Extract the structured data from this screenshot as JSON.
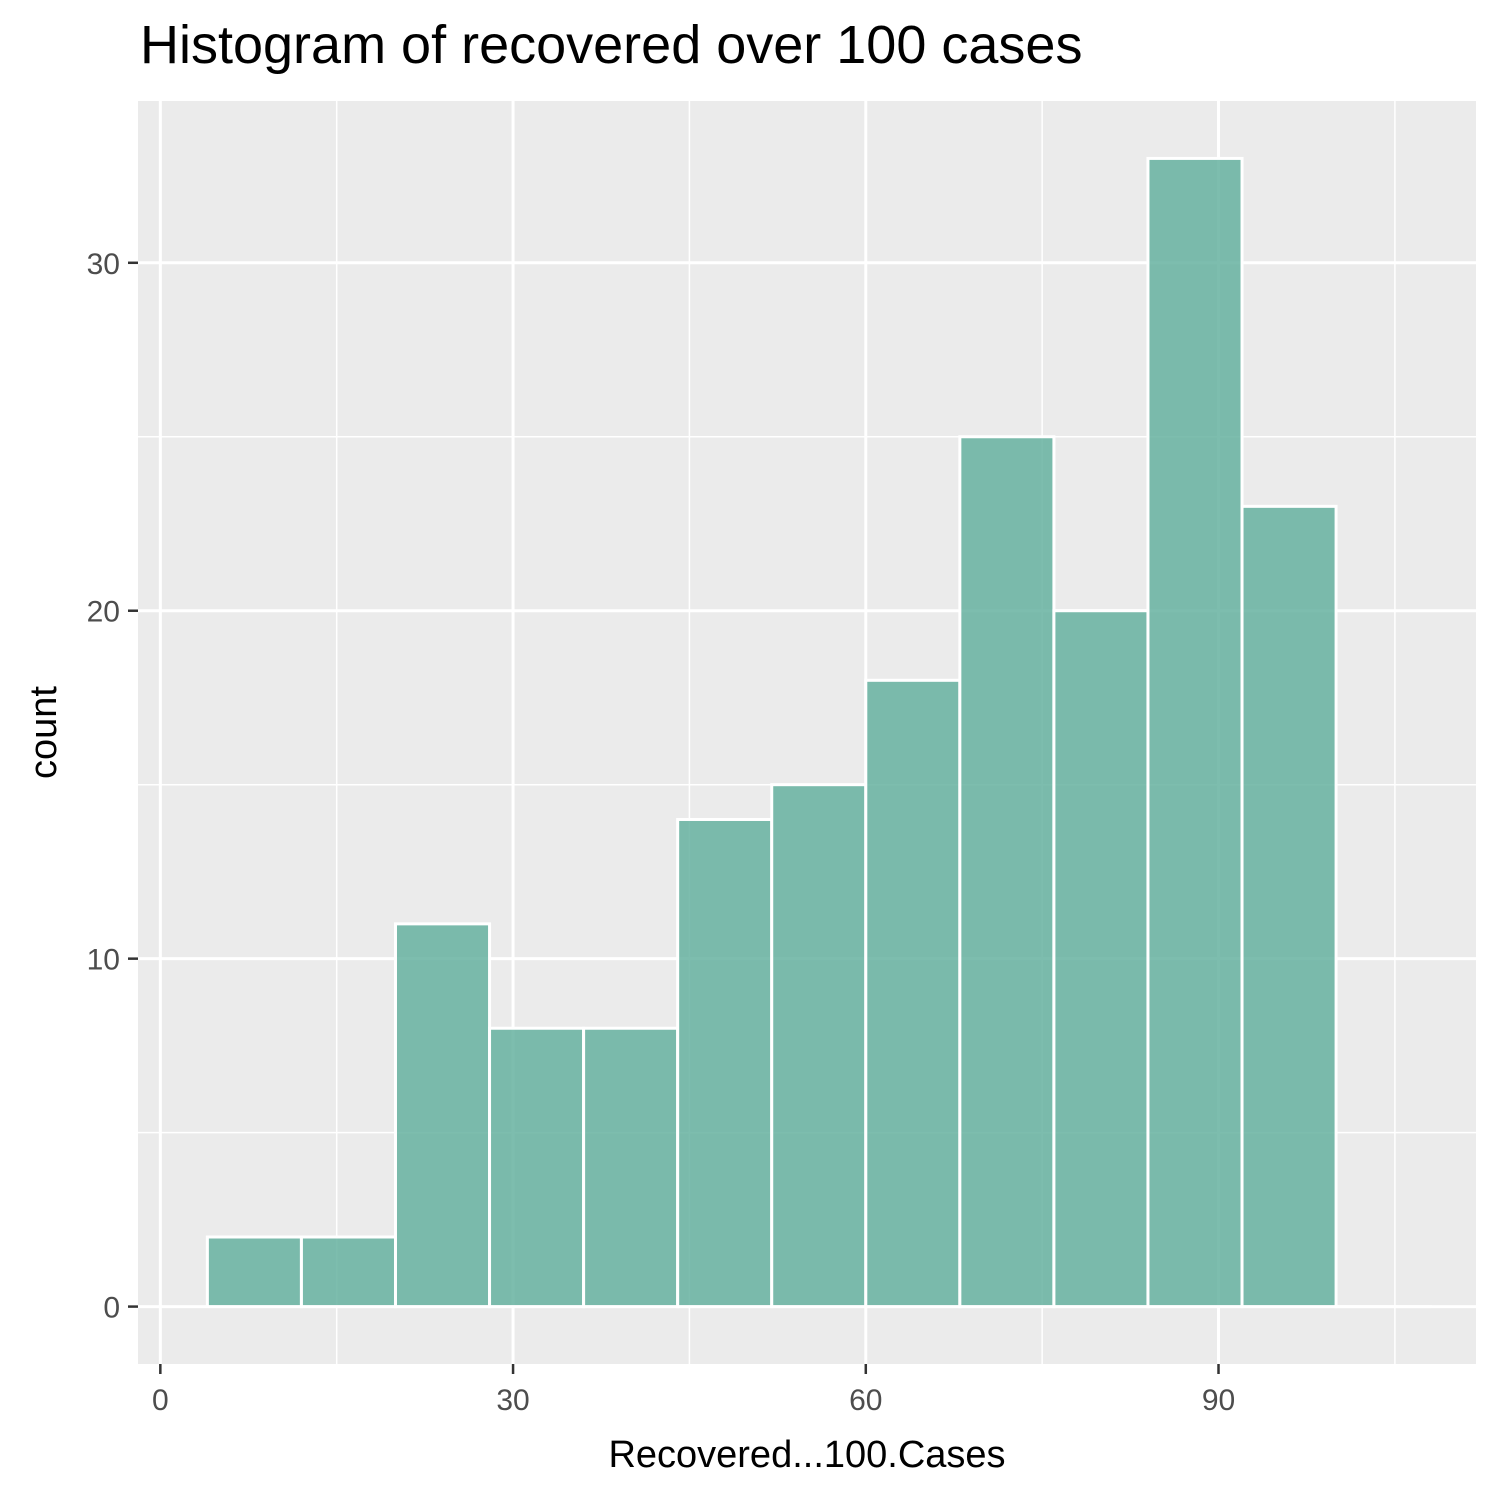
{
  "chart_data": {
    "type": "bar",
    "title": "Histogram of recovered over 100 cases",
    "xlabel": "Recovered...100.Cases",
    "ylabel": "count",
    "xlim": [
      -1.9,
      111.9
    ],
    "ylim": [
      -1.65,
      34.65
    ],
    "x_ticks": [
      0,
      30,
      60,
      90
    ],
    "y_ticks": [
      0,
      10,
      20,
      30
    ],
    "x_minor_ticks": [
      15,
      45,
      75,
      105
    ],
    "y_minor_ticks": [
      5,
      15,
      25
    ],
    "bin_width": 8,
    "bins": [
      {
        "x_start": 4,
        "x_end": 12,
        "count": 2
      },
      {
        "x_start": 12,
        "x_end": 20,
        "count": 2
      },
      {
        "x_start": 20,
        "x_end": 28,
        "count": 11
      },
      {
        "x_start": 28,
        "x_end": 36,
        "count": 8
      },
      {
        "x_start": 36,
        "x_end": 44,
        "count": 8
      },
      {
        "x_start": 44,
        "x_end": 52,
        "count": 14
      },
      {
        "x_start": 52,
        "x_end": 60,
        "count": 15
      },
      {
        "x_start": 60,
        "x_end": 68,
        "count": 18
      },
      {
        "x_start": 68,
        "x_end": 76,
        "count": 25
      },
      {
        "x_start": 76,
        "x_end": 84,
        "count": 20
      },
      {
        "x_start": 84,
        "x_end": 92,
        "count": 33
      },
      {
        "x_start": 92,
        "x_end": 100,
        "count": 23
      },
      {
        "x_start": 100,
        "x_end": 108,
        "count": 0
      }
    ],
    "grid": true,
    "colors": {
      "bar_fill": "#66b2a0",
      "bar_outline": "#ffffff",
      "panel_background": "#ebebeb",
      "grid_line": "#ffffff",
      "tick_text": "#4d4d4d",
      "axis_title_text": "#000000"
    }
  }
}
